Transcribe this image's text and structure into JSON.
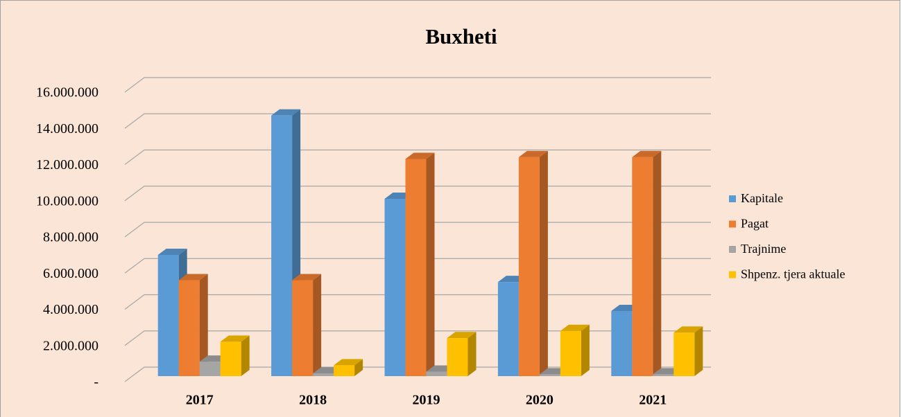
{
  "chart_data": {
    "type": "bar",
    "title": "Buxheti",
    "categories": [
      "2017",
      "2018",
      "2019",
      "2020",
      "2021"
    ],
    "series": [
      {
        "name": "Kapitale",
        "color": "#5b9bd5",
        "values": [
          6700000,
          14400000,
          9800000,
          5200000,
          3600000
        ]
      },
      {
        "name": "Pagat",
        "color": "#ed7d31",
        "values": [
          5300000,
          5300000,
          12000000,
          12100000,
          12100000
        ]
      },
      {
        "name": "Trajnime",
        "color": "#a5a5a5",
        "values": [
          800000,
          150000,
          250000,
          100000,
          100000
        ]
      },
      {
        "name": "Shpenz. tjera aktuale",
        "color": "#ffc000",
        "values": [
          1900000,
          600000,
          2100000,
          2500000,
          2400000
        ]
      }
    ],
    "ylim": [
      0,
      16000000
    ],
    "yticks": [
      {
        "value": 0,
        "label": "-"
      },
      {
        "value": 2000000,
        "label": "2.000.000"
      },
      {
        "value": 4000000,
        "label": "4.000.000"
      },
      {
        "value": 6000000,
        "label": "6.000.000"
      },
      {
        "value": 8000000,
        "label": "8.000.000"
      },
      {
        "value": 10000000,
        "label": "10.000.000"
      },
      {
        "value": 12000000,
        "label": "12.000.000"
      },
      {
        "value": 14000000,
        "label": "14.000.000"
      },
      {
        "value": 16000000,
        "label": "16.000.000"
      }
    ],
    "grid": true,
    "legend": "right"
  }
}
